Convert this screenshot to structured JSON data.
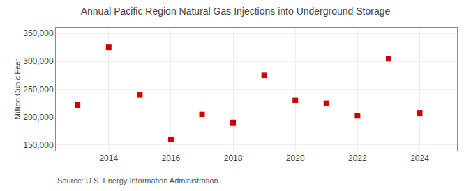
{
  "chart_data": {
    "type": "scatter",
    "title": "Annual Pacific Region Natural Gas Injections into Underground Storage",
    "ylabel": "Million Cubic Feet",
    "annotations": [
      "Source: U.S. Energy Information Administration"
    ],
    "x": [
      2013,
      2014,
      2015,
      2016,
      2017,
      2018,
      2019,
      2020,
      2021,
      2022,
      2023,
      2024
    ],
    "values": [
      222000,
      325000,
      240000,
      160000,
      205000,
      190000,
      275000,
      230000,
      225000,
      203000,
      305000,
      207000
    ],
    "color": "#cc0000",
    "marker": "square",
    "xlim": [
      2012.3,
      2025.2
    ],
    "xticks": [
      2014,
      2016,
      2018,
      2020,
      2022,
      2024
    ],
    "ylim": [
      140000,
      360000
    ],
    "yticks": [
      {
        "value": 150000,
        "label": "150,000"
      },
      {
        "value": 200000,
        "label": "200,000"
      },
      {
        "value": 250000,
        "label": "250,000"
      },
      {
        "value": 300000,
        "label": "300,000"
      },
      {
        "value": 350000,
        "label": "350,000"
      }
    ],
    "grid": true
  }
}
